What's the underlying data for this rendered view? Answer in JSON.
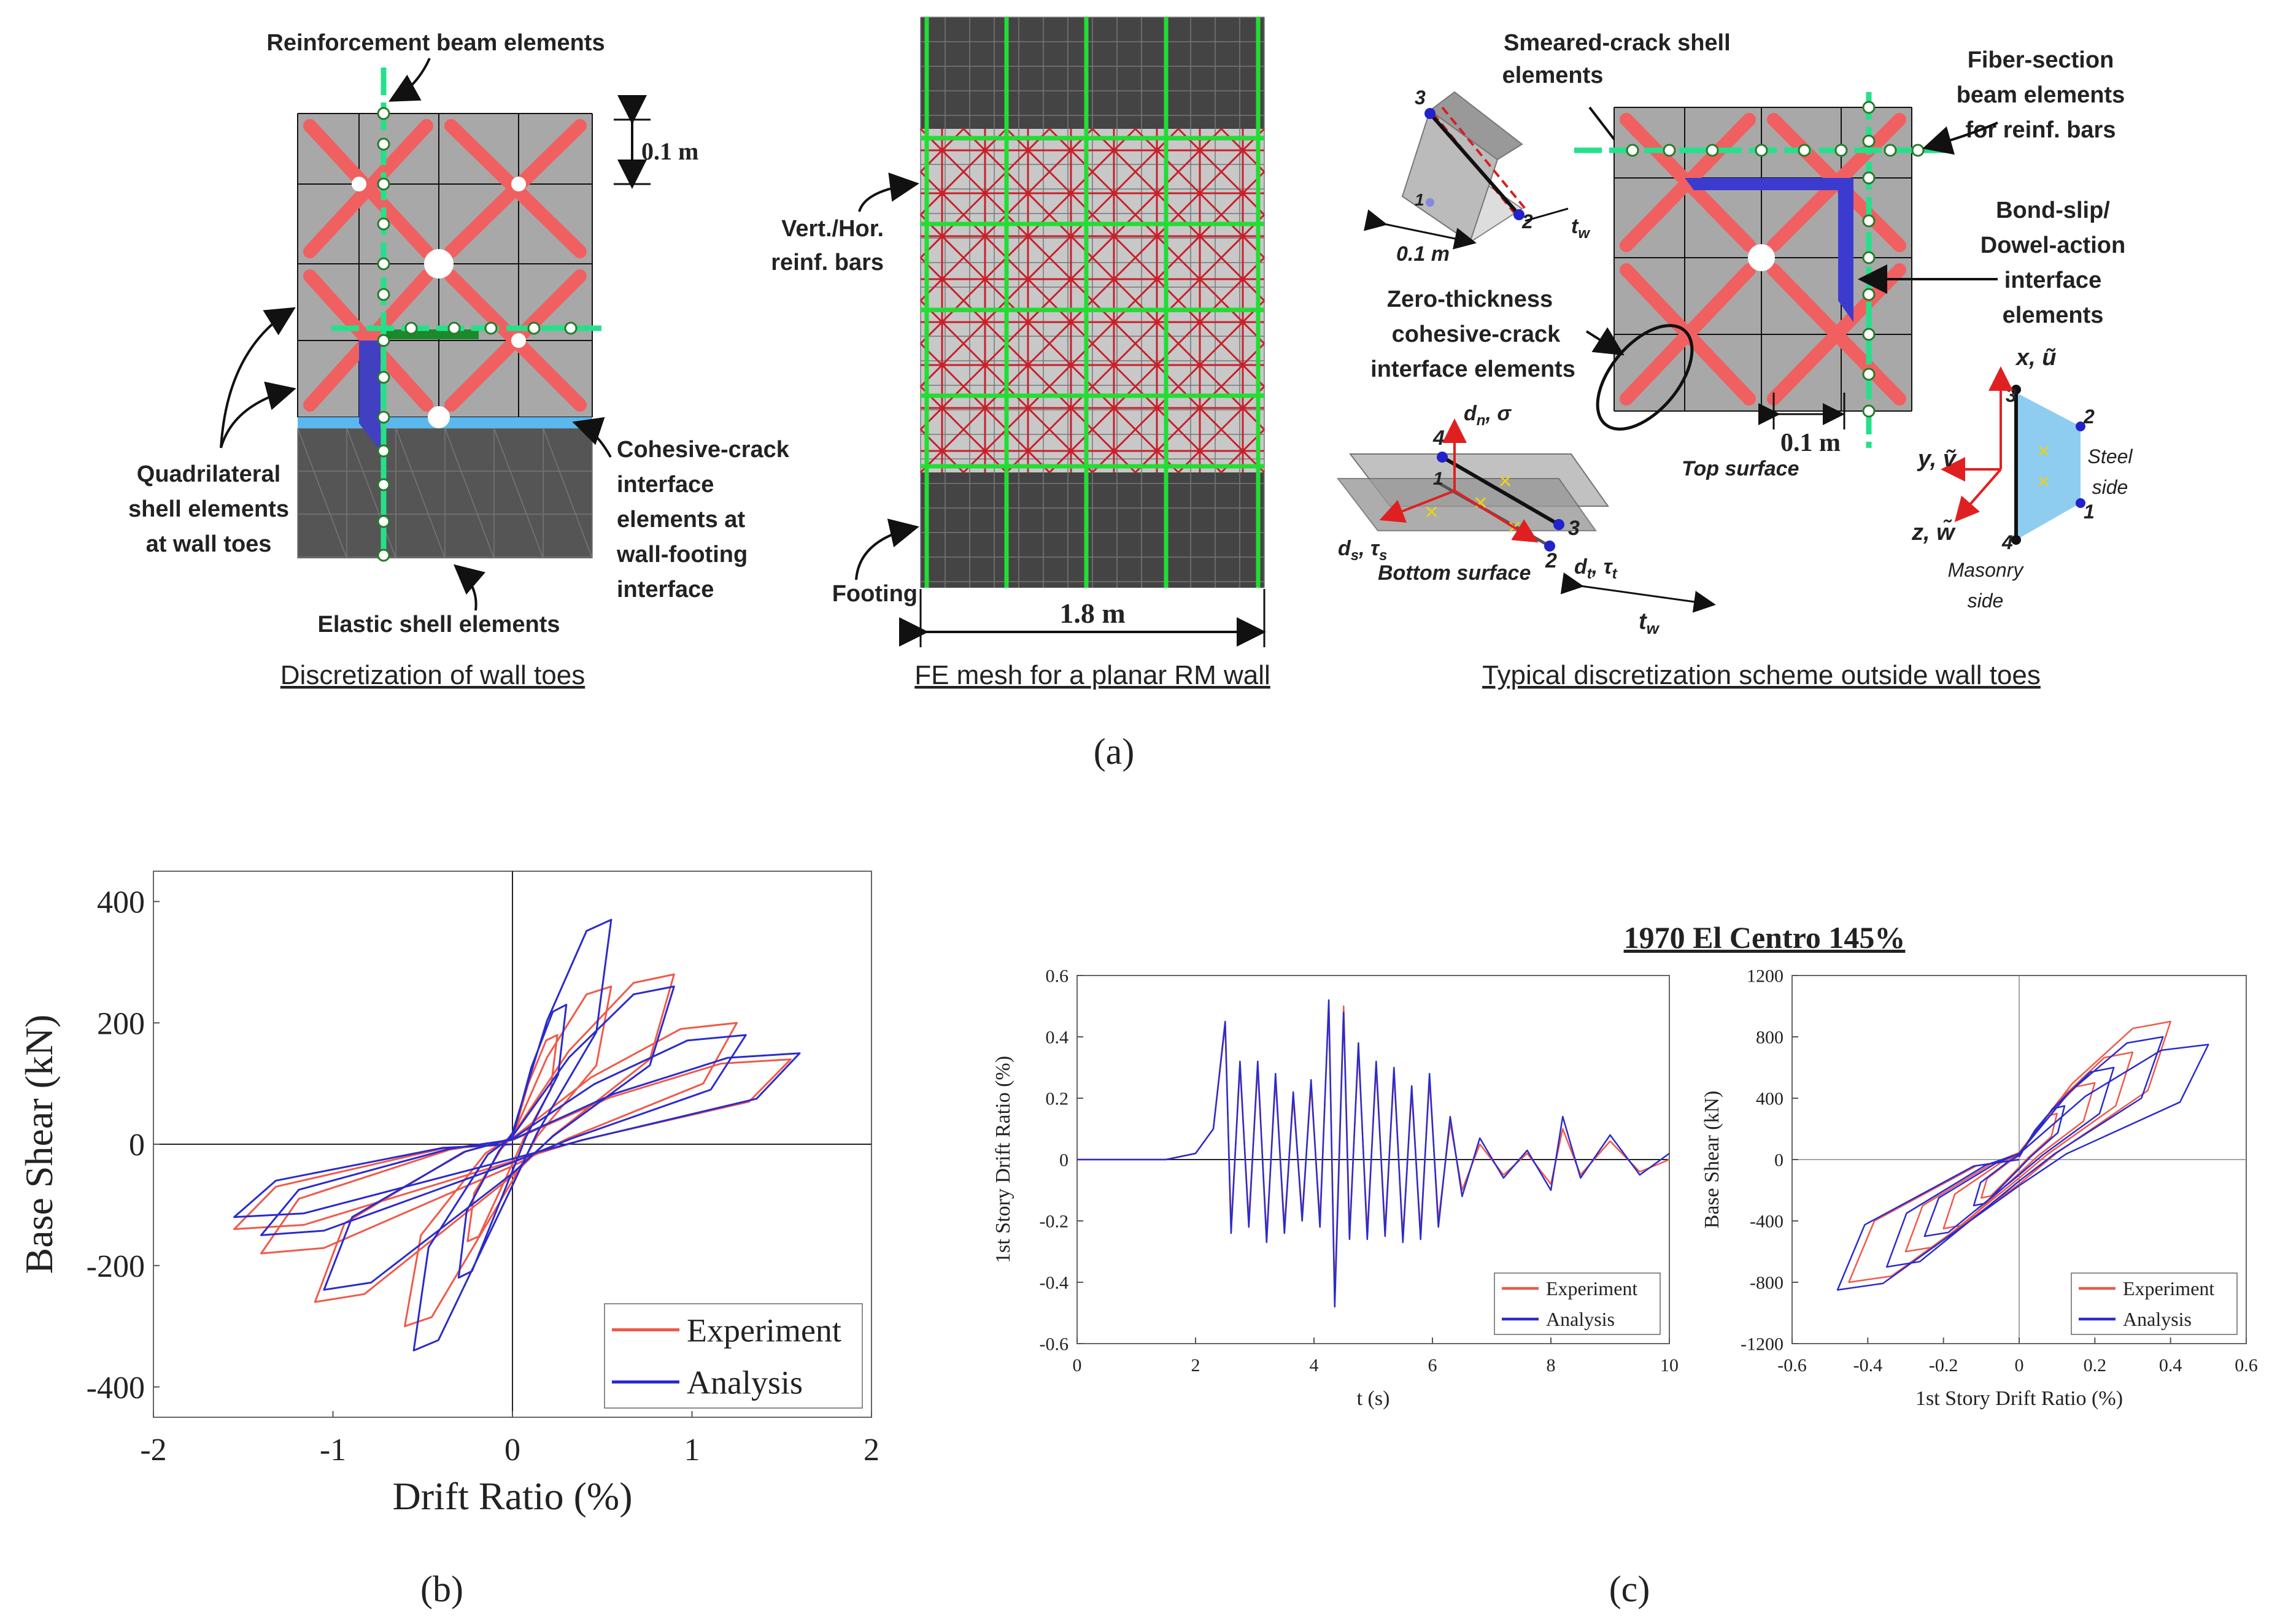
{
  "panel_a": {
    "caption": "(a)",
    "toes": {
      "caption": "Discretization of wall toes",
      "reinforcement": "Reinforcement beam elements",
      "spacing": "0.1 m",
      "quad_shell": [
        "Quadrilateral",
        "shell elements",
        "at wall toes"
      ],
      "cohesive": [
        "Cohesive-crack",
        "interface",
        "elements at",
        "wall-footing",
        "interface"
      ],
      "elastic": "Elastic shell elements"
    },
    "mesh": {
      "caption": "FE mesh for a planar RM wall",
      "bars": [
        "Vert./Hor.",
        "reinf. bars"
      ],
      "footing": "Footing",
      "width": "1.8 m"
    },
    "scheme": {
      "caption": "Typical discretization scheme outside wall toes",
      "smeared": [
        "Smeared-crack shell",
        "elements"
      ],
      "fiber": [
        "Fiber-section",
        "beam elements",
        "for reinf. bars"
      ],
      "bond": [
        "Bond-slip/",
        "Dowel-action",
        "interface",
        "elements"
      ],
      "zero": [
        "Zero-thickness",
        "cohesive-crack",
        "interface elements"
      ],
      "spacing": "0.1 m",
      "spacing_small": "0.1 m",
      "tw": "t",
      "tw_sub": "w",
      "top_surface": "Top surface",
      "bottom_surface": "Bottom surface",
      "dn": "d",
      "dn_sub": "n",
      "sigma": ", σ",
      "ds": "d",
      "ds_sub": "s",
      "taus": ", τ",
      "taus_sub": "s",
      "dt": "d",
      "dt_sub": "t",
      "taut": ", τ",
      "taut_sub": "t",
      "x_axis": "x, ũ",
      "y_axis": "y, ṽ",
      "z_axis": "z, w̃",
      "steel": [
        "Steel",
        "side"
      ],
      "masonry": [
        "Masonry",
        "side"
      ],
      "nodes_a": [
        "1",
        "2",
        "3"
      ],
      "nodes_b": [
        "1",
        "2",
        "3",
        "4"
      ],
      "nodes_c": [
        "1",
        "2",
        "3",
        "4"
      ]
    }
  },
  "panel_b": {
    "caption": "(b)"
  },
  "panel_c": {
    "caption": "(c)",
    "title": "1970 El Centro 145%"
  },
  "colors": {
    "experiment": "#ef5a4a",
    "analysis": "#2b2bcc",
    "bar_green": "#25e08a",
    "shell_red": "#f06060"
  },
  "chart_data": [
    {
      "type": "line",
      "id": "b",
      "title": "",
      "xlabel": "Drift Ratio (%)",
      "ylabel": "Base Shear (kN)",
      "xlim": [
        -2,
        2
      ],
      "ylim": [
        -450,
        450
      ],
      "xticks": [
        -2,
        -1,
        0,
        1,
        2
      ],
      "yticks": [
        -400,
        -200,
        0,
        200,
        400
      ],
      "legend": "bottom-right",
      "series": [
        {
          "name": "Experiment",
          "color": "#ef5a4a",
          "peaks": [
            [
              0.25,
              180,
              -0.25,
              -160
            ],
            [
              0.55,
              260,
              -0.6,
              -300
            ],
            [
              0.9,
              280,
              -1.1,
              -260
            ],
            [
              1.25,
              200,
              -1.4,
              -180
            ],
            [
              1.55,
              140,
              -1.55,
              -140
            ]
          ]
        },
        {
          "name": "Analysis",
          "color": "#2b2bcc",
          "peaks": [
            [
              0.3,
              230,
              -0.3,
              -220
            ],
            [
              0.55,
              370,
              -0.55,
              -340
            ],
            [
              0.9,
              260,
              -1.05,
              -240
            ],
            [
              1.3,
              180,
              -1.4,
              -150
            ],
            [
              1.6,
              150,
              -1.55,
              -120
            ]
          ]
        }
      ]
    },
    {
      "type": "line",
      "id": "c1",
      "xlabel": "t (s)",
      "ylabel": "1st Story Drift Ratio (%)",
      "xlim": [
        0,
        10
      ],
      "ylim": [
        -0.6,
        0.6
      ],
      "xticks": [
        0,
        2,
        4,
        6,
        8,
        10
      ],
      "yticks": [
        -0.6,
        -0.4,
        -0.2,
        0,
        0.2,
        0.4,
        0.6
      ],
      "legend": "bottom-right",
      "series": [
        {
          "name": "Experiment",
          "color": "#ef5a4a",
          "points": [
            [
              0,
              0
            ],
            [
              1.5,
              0
            ],
            [
              2.0,
              0.02
            ],
            [
              2.3,
              0.1
            ],
            [
              2.5,
              0.44
            ],
            [
              2.6,
              -0.22
            ],
            [
              2.75,
              0.3
            ],
            [
              2.9,
              -0.2
            ],
            [
              3.05,
              0.3
            ],
            [
              3.2,
              -0.25
            ],
            [
              3.35,
              0.26
            ],
            [
              3.5,
              -0.22
            ],
            [
              3.65,
              0.2
            ],
            [
              3.8,
              -0.18
            ],
            [
              3.95,
              0.24
            ],
            [
              4.1,
              -0.2
            ],
            [
              4.25,
              0.5
            ],
            [
              4.35,
              -0.45
            ],
            [
              4.5,
              0.5
            ],
            [
              4.6,
              -0.24
            ],
            [
              4.75,
              0.36
            ],
            [
              4.9,
              -0.24
            ],
            [
              5.05,
              0.3
            ],
            [
              5.2,
              -0.23
            ],
            [
              5.35,
              0.28
            ],
            [
              5.5,
              -0.25
            ],
            [
              5.65,
              0.22
            ],
            [
              5.8,
              -0.24
            ],
            [
              5.95,
              0.26
            ],
            [
              6.1,
              -0.2
            ],
            [
              6.3,
              0.12
            ],
            [
              6.5,
              -0.1
            ],
            [
              6.8,
              0.05
            ],
            [
              7.2,
              -0.05
            ],
            [
              7.6,
              0.02
            ],
            [
              8.0,
              -0.08
            ],
            [
              8.2,
              0.1
            ],
            [
              8.5,
              -0.05
            ],
            [
              9.0,
              0.06
            ],
            [
              9.5,
              -0.04
            ],
            [
              10,
              0.0
            ]
          ]
        },
        {
          "name": "Analysis",
          "color": "#2b2bcc",
          "points": [
            [
              0,
              0
            ],
            [
              1.5,
              0
            ],
            [
              2.0,
              0.02
            ],
            [
              2.3,
              0.1
            ],
            [
              2.5,
              0.45
            ],
            [
              2.6,
              -0.24
            ],
            [
              2.75,
              0.32
            ],
            [
              2.9,
              -0.22
            ],
            [
              3.05,
              0.32
            ],
            [
              3.2,
              -0.27
            ],
            [
              3.35,
              0.28
            ],
            [
              3.5,
              -0.24
            ],
            [
              3.65,
              0.22
            ],
            [
              3.8,
              -0.2
            ],
            [
              3.95,
              0.26
            ],
            [
              4.1,
              -0.22
            ],
            [
              4.25,
              0.52
            ],
            [
              4.35,
              -0.48
            ],
            [
              4.5,
              0.48
            ],
            [
              4.6,
              -0.26
            ],
            [
              4.75,
              0.38
            ],
            [
              4.9,
              -0.26
            ],
            [
              5.05,
              0.32
            ],
            [
              5.2,
              -0.25
            ],
            [
              5.35,
              0.3
            ],
            [
              5.5,
              -0.27
            ],
            [
              5.65,
              0.24
            ],
            [
              5.8,
              -0.26
            ],
            [
              5.95,
              0.28
            ],
            [
              6.1,
              -0.22
            ],
            [
              6.3,
              0.14
            ],
            [
              6.5,
              -0.12
            ],
            [
              6.8,
              0.07
            ],
            [
              7.2,
              -0.06
            ],
            [
              7.6,
              0.03
            ],
            [
              8.0,
              -0.1
            ],
            [
              8.2,
              0.14
            ],
            [
              8.5,
              -0.06
            ],
            [
              9.0,
              0.08
            ],
            [
              9.5,
              -0.05
            ],
            [
              10,
              0.02
            ]
          ]
        }
      ]
    },
    {
      "type": "line",
      "id": "c2",
      "xlabel": "1st Story Drift Ratio (%)",
      "ylabel": "Base Shear (kN)",
      "xlim": [
        -0.6,
        0.6
      ],
      "ylim": [
        -1200,
        1200
      ],
      "xticks": [
        -0.6,
        -0.4,
        -0.2,
        0,
        0.2,
        0.4,
        0.6
      ],
      "yticks": [
        -1200,
        -800,
        -400,
        0,
        400,
        800,
        1200
      ],
      "legend": "bottom-right",
      "series": [
        {
          "name": "Experiment",
          "color": "#ef5a4a",
          "peaks": [
            [
              0.1,
              300,
              -0.1,
              -250
            ],
            [
              0.2,
              500,
              -0.2,
              -450
            ],
            [
              0.3,
              700,
              -0.3,
              -600
            ],
            [
              0.4,
              900,
              -0.45,
              -800
            ]
          ]
        },
        {
          "name": "Analysis",
          "color": "#2b2bcc",
          "peaks": [
            [
              0.12,
              350,
              -0.12,
              -300
            ],
            [
              0.25,
              600,
              -0.25,
              -500
            ],
            [
              0.38,
              800,
              -0.35,
              -700
            ],
            [
              0.5,
              750,
              -0.48,
              -850
            ]
          ]
        }
      ]
    }
  ]
}
